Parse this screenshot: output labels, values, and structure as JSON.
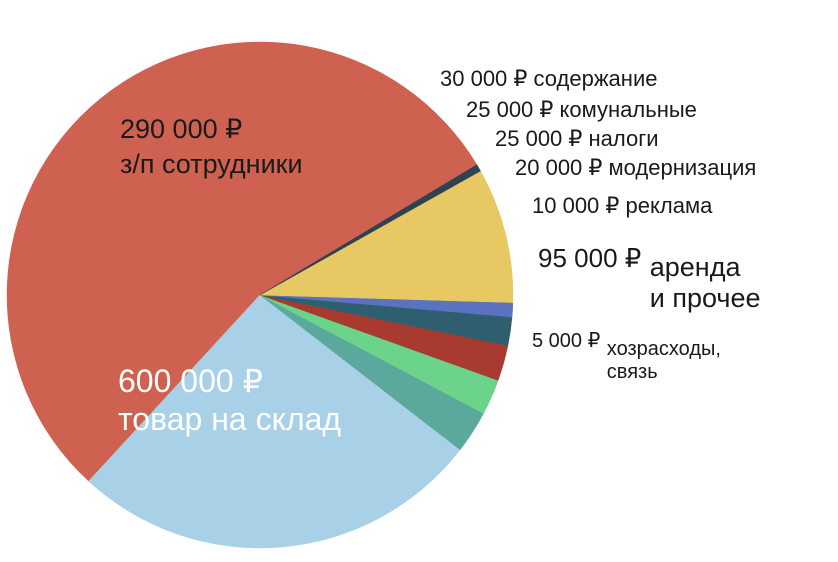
{
  "chart_data": {
    "type": "pie",
    "title": "",
    "start_angle_deg": 31,
    "clockwise": false,
    "slices": [
      {
        "value": 600000,
        "value_label": "600 000 ₽",
        "category": "товар на склад",
        "color": "#cf6150"
      },
      {
        "value": 290000,
        "value_label": "290 000 ₽",
        "category": "з/п сотрудники",
        "color": "#a8d0e6"
      },
      {
        "value": 30000,
        "value_label": "30 000 ₽",
        "category": "содержание",
        "color": "#5ba99c"
      },
      {
        "value": 25000,
        "value_label": "25 000 ₽",
        "category": "комунальные",
        "color": "#6bd38a"
      },
      {
        "value": 25000,
        "value_label": "25 000 ₽",
        "category": "налоги",
        "color": "#a93a2f"
      },
      {
        "value": 20000,
        "value_label": "20 000 ₽",
        "category": "модернизация",
        "color": "#2f5f6e"
      },
      {
        "value": 10000,
        "value_label": "10 000 ₽",
        "category": "реклама",
        "color": "#5a72c0"
      },
      {
        "value": 95000,
        "value_label": "95 000 ₽",
        "category": "аренда\nи прочее",
        "color": "#e8c862"
      },
      {
        "value": 5000,
        "value_label": "5 000 ₽",
        "category": "хозрасходы,\nсвязь",
        "color": "#2e4352"
      }
    ]
  }
}
